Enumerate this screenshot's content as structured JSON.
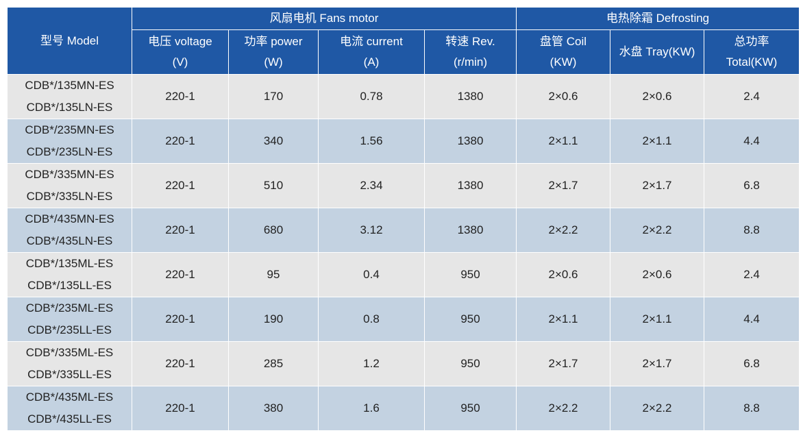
{
  "header": {
    "model": "型号 Model",
    "group_fan": "风扇电机 Fans motor",
    "group_defrost": "电热除霜 Defrosting",
    "columns": [
      {
        "line1": "电压 voltage",
        "line2": "(V)"
      },
      {
        "line1": "功率 power",
        "line2": "(W)"
      },
      {
        "line1": "电流 current",
        "line2": "(A)"
      },
      {
        "line1": "转速 Rev.",
        "line2": "(r/min)"
      },
      {
        "line1": "盘管 Coil",
        "line2": "(KW)"
      },
      {
        "line1": "水盘 Tray(KW)",
        "line2": ""
      },
      {
        "line1": "总功率",
        "line2": "Total(KW)"
      }
    ]
  },
  "rows": [
    {
      "model1": "CDB*/135MN-ES",
      "model2": "CDB*/135LN-ES",
      "voltage": "220-1",
      "power": "170",
      "current": "0.78",
      "rev": "1380",
      "coil": "2×0.6",
      "tray": "2×0.6",
      "total": "2.4"
    },
    {
      "model1": "CDB*/235MN-ES",
      "model2": "CDB*/235LN-ES",
      "voltage": "220-1",
      "power": "340",
      "current": "1.56",
      "rev": "1380",
      "coil": "2×1.1",
      "tray": "2×1.1",
      "total": "4.4"
    },
    {
      "model1": "CDB*/335MN-ES",
      "model2": "CDB*/335LN-ES",
      "voltage": "220-1",
      "power": "510",
      "current": "2.34",
      "rev": "1380",
      "coil": "2×1.7",
      "tray": "2×1.7",
      "total": "6.8"
    },
    {
      "model1": "CDB*/435MN-ES",
      "model2": "CDB*/435LN-ES",
      "voltage": "220-1",
      "power": "680",
      "current": "3.12",
      "rev": "1380",
      "coil": "2×2.2",
      "tray": "2×2.2",
      "total": "8.8"
    },
    {
      "model1": "CDB*/135ML-ES",
      "model2": "CDB*/135LL-ES",
      "voltage": "220-1",
      "power": "95",
      "current": "0.4",
      "rev": "950",
      "coil": "2×0.6",
      "tray": "2×0.6",
      "total": "2.4"
    },
    {
      "model1": "CDB*/235ML-ES",
      "model2": "CDB*/235LL-ES",
      "voltage": "220-1",
      "power": "190",
      "current": "0.8",
      "rev": "950",
      "coil": "2×1.1",
      "tray": "2×1.1",
      "total": "4.4"
    },
    {
      "model1": "CDB*/335ML-ES",
      "model2": "CDB*/335LL-ES",
      "voltage": "220-1",
      "power": "285",
      "current": "1.2",
      "rev": "950",
      "coil": "2×1.7",
      "tray": "2×1.7",
      "total": "6.8"
    },
    {
      "model1": "CDB*/435ML-ES",
      "model2": "CDB*/435LL-ES",
      "voltage": "220-1",
      "power": "380",
      "current": "1.6",
      "rev": "950",
      "coil": "2×2.2",
      "tray": "2×2.2",
      "total": "8.8"
    }
  ],
  "colors": {
    "header_bg": "#1f58a5",
    "row_light": "#e6e6e6",
    "row_blue": "#c3d2e1"
  }
}
